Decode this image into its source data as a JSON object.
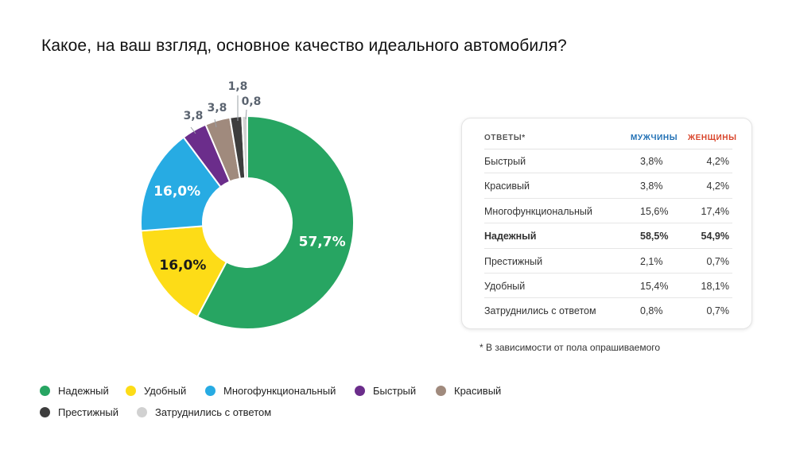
{
  "title": "Какое, на ваш взгляд, основное качество идеального автомобиля?",
  "chart_data": {
    "type": "pie",
    "title": "Какое, на ваш взгляд, основное качество идеального автомобиля?",
    "donut": true,
    "start": "top, clockwise",
    "slices": [
      {
        "name": "Надежный",
        "value": 57.7,
        "label": "57,7%",
        "color": "#27A562",
        "label_color": "#ffffff",
        "label_position": "inside"
      },
      {
        "name": "Удобный",
        "value": 16.0,
        "label": "16,0%",
        "color": "#FDDC17",
        "label_color": "#1a1a1a",
        "label_position": "inside"
      },
      {
        "name": "Многофункциональный",
        "value": 16.0,
        "label": "16,0%",
        "color": "#27ABE3",
        "label_color": "#ffffff",
        "label_position": "inside"
      },
      {
        "name": "Быстрый",
        "value": 3.8,
        "label": "3,8",
        "color": "#6B2D8B",
        "label_color": "#5b6470",
        "label_position": "outside"
      },
      {
        "name": "Красивый",
        "value": 3.8,
        "label": "3,8",
        "color": "#A08A7D",
        "label_color": "#5b6470",
        "label_position": "outside"
      },
      {
        "name": "Престижный",
        "value": 1.8,
        "label": "1,8",
        "color": "#3D3D3D",
        "label_color": "#5b6470",
        "label_position": "outside"
      },
      {
        "name": "Затруднились с ответом",
        "value": 0.8,
        "label": "0,8",
        "color": "#D1D1D1",
        "label_color": "#5b6470",
        "label_position": "outside"
      }
    ]
  },
  "table": {
    "headers": {
      "answers": "ОТВЕТЫ",
      "answers_mark": "*",
      "men": "МУЖЧИНЫ",
      "women": "ЖЕНЩИНЫ"
    },
    "colors": {
      "men": "#1F6FB4",
      "women": "#D9452B"
    },
    "rows": [
      {
        "answer": "Быстрый",
        "men": "3,8%",
        "women": "4,2%",
        "bold": false
      },
      {
        "answer": "Красивый",
        "men": "3,8%",
        "women": "4,2%",
        "bold": false
      },
      {
        "answer": "Многофункциональный",
        "men": "15,6%",
        "women": "17,4%",
        "bold": false
      },
      {
        "answer": "Надежный",
        "men": "58,5%",
        "women": "54,9%",
        "bold": true
      },
      {
        "answer": "Престижный",
        "men": "2,1%",
        "women": "0,7%",
        "bold": false
      },
      {
        "answer": "Удобный",
        "men": "15,4%",
        "women": "18,1%",
        "bold": false
      },
      {
        "answer": "Затруднились с ответом",
        "men": "0,8%",
        "women": "0,7%",
        "bold": false
      }
    ]
  },
  "footnote": "* В зависимости от пола опрашиваемого",
  "legend": {
    "row1": [
      {
        "label": "Надежный",
        "color": "#27A562"
      },
      {
        "label": "Удобный",
        "color": "#FDDC17"
      },
      {
        "label": "Многофункциональный",
        "color": "#27ABE3"
      },
      {
        "label": "Быстрый",
        "color": "#6B2D8B"
      },
      {
        "label": "Красивый",
        "color": "#A08A7D"
      }
    ],
    "row2": [
      {
        "label": "Престижный",
        "color": "#3D3D3D"
      },
      {
        "label": "Затруднились с ответом",
        "color": "#D1D1D1"
      }
    ]
  }
}
